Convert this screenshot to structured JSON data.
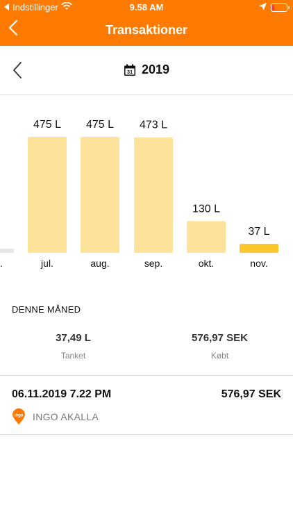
{
  "status_bar": {
    "back_app": "Indstillinger",
    "time": "9.58 AM"
  },
  "nav": {
    "title": "Transaktioner"
  },
  "year_selector": {
    "year": "2019",
    "calendar_day": "31"
  },
  "chart_data": {
    "type": "bar",
    "unit": "L",
    "categories": [
      "jun.",
      "jul.",
      "aug.",
      "sep.",
      "okt.",
      "nov."
    ],
    "values": [
      4,
      475,
      475,
      473,
      130,
      37
    ],
    "value_labels": [
      "",
      "475 L",
      "475 L",
      "473 L",
      "130 L",
      "37 L"
    ],
    "category_labels": [
      ".",
      "jul.",
      "aug.",
      "sep.",
      "okt.",
      "nov."
    ],
    "selected_index": 5,
    "colors": {
      "bar": "#fde39a",
      "bar_selected": "#fbc72a",
      "bar_partial": "#e6e6e6"
    },
    "title": "",
    "xlabel": "",
    "ylabel": ""
  },
  "summary": {
    "heading": "DENNE MÅNED",
    "fuel_value": "37,49 L",
    "fuel_label": "Tanket",
    "cost_value": "576,97 SEK",
    "cost_label": "Købt"
  },
  "transactions": [
    {
      "datetime": "06.11.2019 7.22 PM",
      "amount": "576,97 SEK",
      "station": "INGO AKALLA",
      "logo_text": "ingo"
    }
  ],
  "colors": {
    "accent": "#ff7a00"
  }
}
